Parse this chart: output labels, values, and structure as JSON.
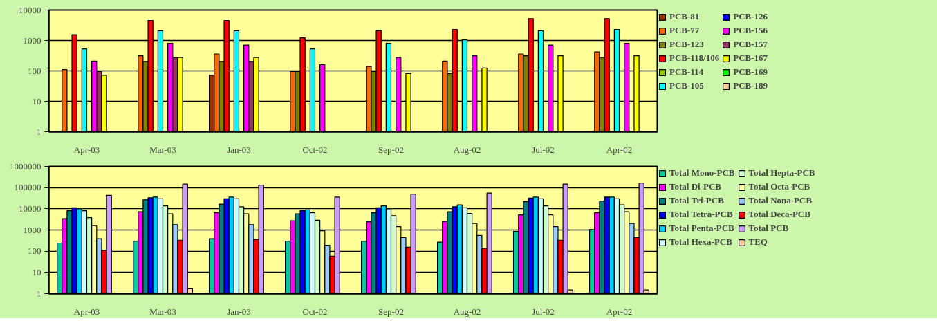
{
  "chart_data": [
    {
      "type": "bar",
      "log": true,
      "grid": "y",
      "legend": "right",
      "categories": [
        "Apr-03",
        "Mar-03",
        "Jan-03",
        "Oct-02",
        "Sep-02",
        "Aug-02",
        "Jul-02",
        "Apr-02"
      ],
      "ylim": [
        1,
        10000
      ],
      "yticks": [
        1,
        10,
        100,
        1000,
        10000
      ],
      "series": [
        {
          "name": "PCB-81",
          "color": "#993300",
          "values": [
            null,
            null,
            72,
            null,
            null,
            null,
            null,
            null
          ]
        },
        {
          "name": "PCB-77",
          "color": "#ff6600",
          "values": [
            110,
            315,
            360,
            95,
            140,
            210,
            360,
            420
          ]
        },
        {
          "name": "PCB-123",
          "color": "#808000",
          "values": [
            null,
            205,
            205,
            95,
            95,
            82,
            315,
            275
          ]
        },
        {
          "name": "PCB-118/106",
          "color": "#ff0000",
          "values": [
            1550,
            4550,
            4550,
            1230,
            2100,
            2300,
            5250,
            5250
          ]
        },
        {
          "name": "PCB-114",
          "color": "#99cc00",
          "values": [
            null,
            null,
            null,
            null,
            null,
            null,
            null,
            null
          ]
        },
        {
          "name": "PCB-105",
          "color": "#00ffff",
          "values": [
            530,
            2100,
            2100,
            530,
            810,
            1050,
            2100,
            2300
          ]
        },
        {
          "name": "PCB-126",
          "color": "#0000ff",
          "values": [
            null,
            null,
            null,
            null,
            null,
            null,
            null,
            null
          ]
        },
        {
          "name": "PCB-156",
          "color": "#ff00ff",
          "values": [
            210,
            810,
            710,
            160,
            275,
            315,
            710,
            810
          ]
        },
        {
          "name": "PCB-157",
          "color": "#993366",
          "values": [
            95,
            275,
            205,
            null,
            null,
            null,
            null,
            null
          ]
        },
        {
          "name": "PCB-167",
          "color": "#ffff00",
          "values": [
            72,
            275,
            275,
            null,
            82,
            124,
            315,
            315
          ]
        },
        {
          "name": "PCB-169",
          "color": "#00ff00",
          "values": [
            null,
            null,
            null,
            null,
            null,
            null,
            null,
            null
          ]
        },
        {
          "name": "PCB-189",
          "color": "#ffcc99",
          "values": [
            null,
            null,
            null,
            null,
            null,
            null,
            null,
            null
          ]
        }
      ]
    },
    {
      "type": "bar",
      "log": true,
      "grid": "y",
      "legend": "right",
      "categories": [
        "Apr-03",
        "Mar-03",
        "Jan-03",
        "Oct-02",
        "Sep-02",
        "Aug-02",
        "Jul-02",
        "Apr-02"
      ],
      "ylim": [
        1,
        1000000
      ],
      "yticks": [
        1,
        10,
        100,
        1000,
        10000,
        100000,
        1000000
      ],
      "series": [
        {
          "name": "Total Mono-PCB",
          "color": "#00cc99",
          "values": [
            240,
            295,
            390,
            295,
            295,
            265,
            850,
            1050
          ]
        },
        {
          "name": "Total Di-PCB",
          "color": "#ff00ff",
          "values": [
            3400,
            7200,
            6500,
            2750,
            2450,
            2500,
            5200,
            6500
          ]
        },
        {
          "name": "Total Tri-PCB",
          "color": "#008080",
          "values": [
            8100,
            26500,
            16700,
            5800,
            6500,
            7200,
            21400,
            23000
          ]
        },
        {
          "name": "Total Tetra-PCB",
          "color": "#0000ff",
          "values": [
            11200,
            33000,
            29500,
            8100,
            11200,
            12400,
            32000,
            35500
          ]
        },
        {
          "name": "Total Penta-PCB",
          "color": "#00ccff",
          "values": [
            10000,
            35500,
            35500,
            9000,
            13800,
            15400,
            35500,
            35500
          ]
        },
        {
          "name": "Total Hexa-PCB",
          "color": "#ccffff",
          "values": [
            8100,
            29500,
            29500,
            6500,
            10000,
            11200,
            29500,
            29500
          ]
        },
        {
          "name": "Total Hepta-PCB",
          "color": "#ccffcc",
          "values": [
            3800,
            13800,
            12400,
            2870,
            4700,
            6000,
            13800,
            15400
          ]
        },
        {
          "name": "Total Octa-PCB",
          "color": "#ffff99",
          "values": [
            1600,
            5800,
            5800,
            920,
            1450,
            2030,
            5200,
            7200
          ]
        },
        {
          "name": "Total Nona-PCB",
          "color": "#99ccff",
          "values": [
            390,
            1780,
            1780,
            190,
            445,
            550,
            1450,
            2030
          ]
        },
        {
          "name": "Total Deca-PCB",
          "color": "#ff0000",
          "values": [
            110,
            330,
            355,
            58,
            155,
            138,
            330,
            445
          ]
        },
        {
          "name": "Total PCB",
          "color": "#cc99ff",
          "values": [
            43000,
            146000,
            131000,
            35500,
            49000,
            55000,
            146000,
            162000
          ]
        },
        {
          "name": "TEQ",
          "color": "#ffcc99",
          "values": [
            null,
            1.7,
            null,
            null,
            null,
            null,
            1.5,
            1.5
          ]
        }
      ]
    }
  ]
}
